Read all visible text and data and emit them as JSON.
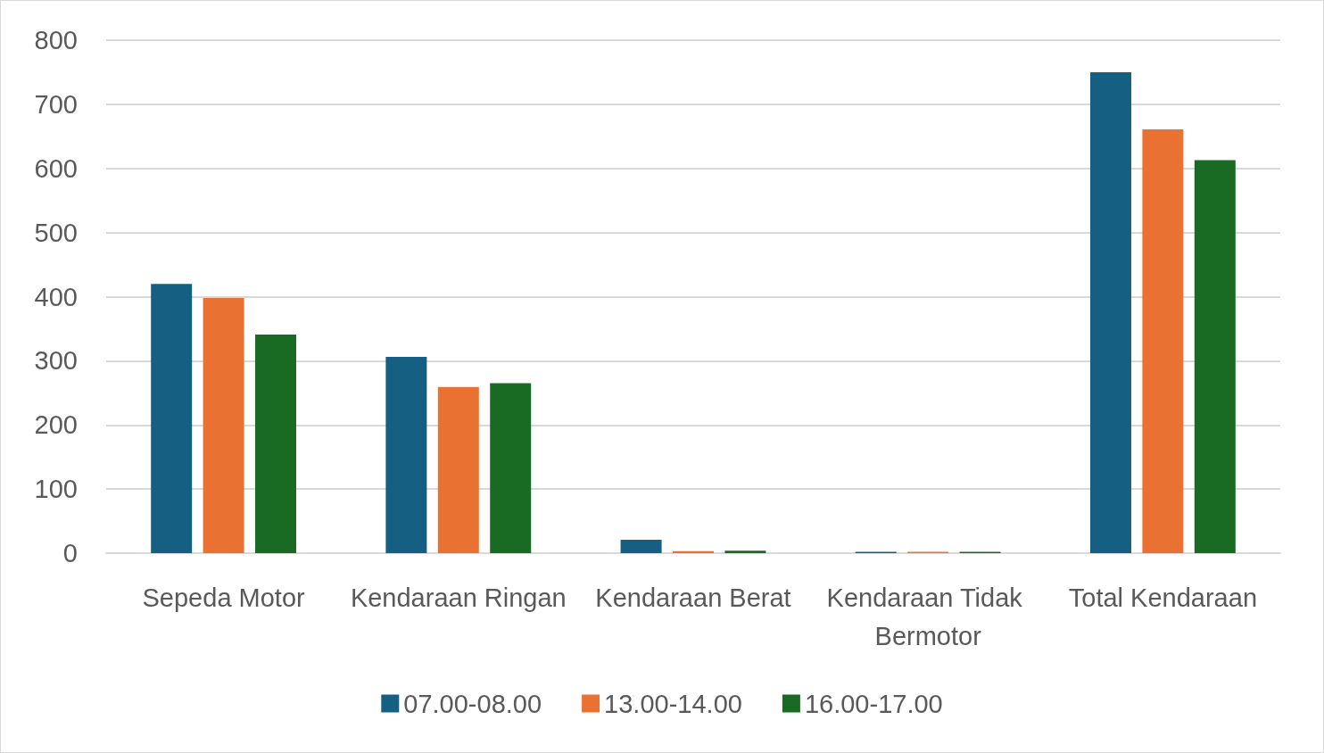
{
  "chart_data": {
    "type": "bar",
    "categories": [
      "Sepeda Motor",
      "Kendaraan Ringan",
      "Kendaraan Berat",
      "Kendaraan Tidak Bermotor",
      "Total Kendaraan"
    ],
    "series": [
      {
        "name": "07.00-08.00",
        "color": "#156082",
        "values": [
          420,
          306,
          21,
          2,
          750
        ]
      },
      {
        "name": "13.00-14.00",
        "color": "#e97132",
        "values": [
          398,
          259,
          3,
          2,
          661
        ]
      },
      {
        "name": "16.00-17.00",
        "color": "#196b24",
        "values": [
          341,
          265,
          4,
          2,
          613
        ]
      }
    ],
    "ylim": [
      0,
      800
    ],
    "yticks": [
      0,
      100,
      200,
      300,
      400,
      500,
      600,
      700,
      800
    ],
    "grid": "y",
    "legend": "bottom"
  }
}
